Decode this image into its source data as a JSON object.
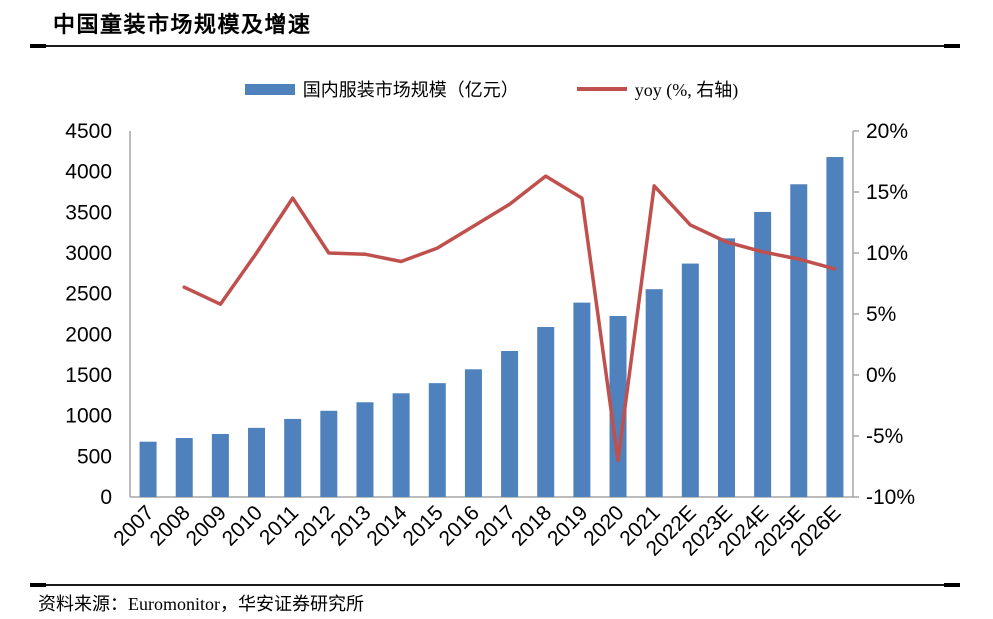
{
  "page": {
    "title": "中国童装市场规模及增速",
    "source": "资料来源：Euromonitor，华安证券研究所"
  },
  "legend": {
    "bar_label": "国内服装市场规模（亿元）",
    "line_label": "yoy (%, 右轴)"
  },
  "colors": {
    "bar": "#4F81BD",
    "line": "#C0504D",
    "axis": "#A6A6A6",
    "text": "#000000"
  },
  "chart_data": {
    "type": "bar",
    "subtype": "combo bar+line, dual axis",
    "title": "中国童装市场规模及增速",
    "categories": [
      "2007",
      "2008",
      "2009",
      "2010",
      "2011",
      "2012",
      "2013",
      "2014",
      "2015",
      "2016",
      "2017",
      "2018",
      "2019",
      "2020",
      "2021",
      "2022E",
      "2023E",
      "2024E",
      "2025E",
      "2026E"
    ],
    "series": [
      {
        "name": "国内服装市场规模（亿元）",
        "type": "bar",
        "axis": "left",
        "color": "#4F81BD",
        "values": [
          680,
          725,
          775,
          850,
          960,
          1060,
          1165,
          1275,
          1400,
          1570,
          1795,
          2090,
          2390,
          2225,
          2555,
          2870,
          3180,
          3505,
          3845,
          4180
        ]
      },
      {
        "name": "yoy (%, 右轴)",
        "type": "line",
        "axis": "right",
        "color": "#C0504D",
        "values": [
          null,
          7.2,
          5.8,
          10.0,
          14.5,
          10.0,
          9.9,
          9.3,
          10.4,
          12.2,
          14.0,
          16.3,
          14.5,
          -7.0,
          15.5,
          12.3,
          10.9,
          10.1,
          9.5,
          8.7
        ]
      }
    ],
    "left_axis": {
      "min": 0,
      "max": 4500,
      "step": 500,
      "tick_labels": [
        "0",
        "500",
        "1000",
        "1500",
        "2000",
        "2500",
        "3000",
        "3500",
        "4000",
        "4500"
      ]
    },
    "right_axis": {
      "min": -10,
      "max": 20,
      "step": 5,
      "tick_labels": [
        "-10%",
        "-5%",
        "0%",
        "5%",
        "10%",
        "15%",
        "20%"
      ]
    },
    "legend_position": "top",
    "grid": false
  }
}
